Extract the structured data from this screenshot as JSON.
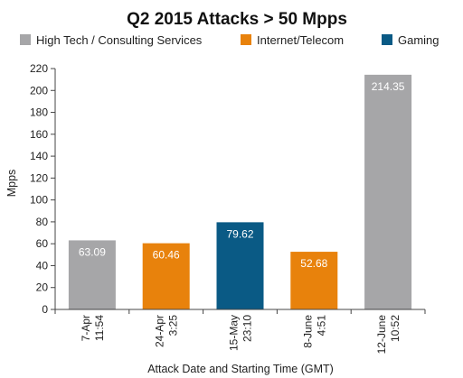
{
  "chart_data": {
    "type": "bar",
    "title": "Q2 2015 Attacks > 50 Mpps",
    "xlabel": "Attack Date and Starting Time (GMT)",
    "ylabel": "Mpps",
    "ylim": [
      0,
      220
    ],
    "yticks": [
      0,
      20,
      40,
      60,
      80,
      100,
      120,
      140,
      160,
      180,
      200,
      220
    ],
    "grid": false,
    "legend_placement": "top",
    "legend": [
      {
        "name": "High Tech / Consulting Services",
        "color": "#a6a6a8"
      },
      {
        "name": "Internet/Telecom",
        "color": "#e8820c"
      },
      {
        "name": "Gaming",
        "color": "#0a5a85"
      }
    ],
    "categories": [
      [
        "7-Apr",
        "11:54"
      ],
      [
        "24-Apr",
        "3:25"
      ],
      [
        "15-May",
        "23:10"
      ],
      [
        "8-June",
        "4:51"
      ],
      [
        "12-June",
        "10:52"
      ]
    ],
    "values": [
      63.09,
      60.46,
      79.62,
      52.68,
      214.35
    ],
    "value_labels": [
      "63.09",
      "60.46",
      "79.62",
      "52.68",
      "214.35"
    ],
    "bar_series": [
      "High Tech / Consulting Services",
      "Internet/Telecom",
      "Gaming",
      "Internet/Telecom",
      "High Tech / Consulting Services"
    ]
  }
}
